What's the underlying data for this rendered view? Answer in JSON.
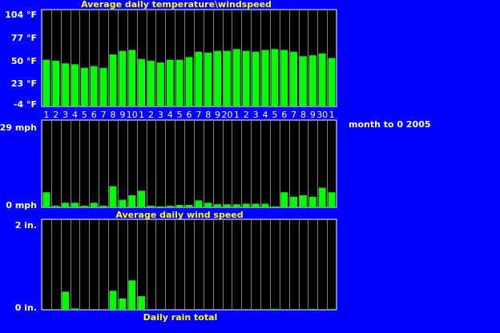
{
  "period_label": "month to 0 2005",
  "colors": {
    "background": "#0000ff",
    "plot_bg": "#000000",
    "bar": "#00ff00",
    "grid": "#808080",
    "title": "#ffff00",
    "label": "#ffffff"
  },
  "chart_data": [
    {
      "type": "bar",
      "title": "Average daily temperature\\windspeed",
      "categories": [
        "1",
        "2",
        "3",
        "4",
        "5",
        "6",
        "7",
        "8",
        "9",
        "10",
        "1",
        "2",
        "3",
        "4",
        "5",
        "6",
        "7",
        "8",
        "9",
        "20",
        "1",
        "2",
        "3",
        "4",
        "5",
        "6",
        "7",
        "8",
        "9",
        "30",
        "1"
      ],
      "values": [
        48,
        47,
        44,
        43,
        39,
        41,
        39,
        54,
        58,
        59,
        49,
        47,
        45,
        48,
        48,
        51,
        57,
        56,
        58,
        58,
        60,
        58,
        57,
        59,
        60,
        59,
        57,
        52,
        53,
        55,
        50
      ],
      "ylim": [
        -4,
        104
      ],
      "yticks": [
        "104 °F",
        "77 °F",
        "50 °F",
        "23 °F",
        "-4 °F"
      ],
      "grid": true
    },
    {
      "type": "bar",
      "title": "Average daily wind speed",
      "values": [
        5,
        0.5,
        1.5,
        1.5,
        0.5,
        1.5,
        0.5,
        7,
        2.5,
        4,
        5.5,
        0.5,
        0.3,
        0.5,
        0.8,
        0.8,
        2.3,
        1.5,
        1,
        1,
        1,
        1.2,
        1.2,
        1.2,
        0.3,
        5,
        3.5,
        4,
        3.5,
        6.5,
        5
      ],
      "ylim": [
        0,
        29
      ],
      "yticks": [
        "29 mph",
        "0 mph"
      ],
      "grid": true
    },
    {
      "type": "bar",
      "title": "Daily rain total",
      "values": [
        0,
        0,
        0.4,
        0.03,
        0,
        0,
        0,
        0.42,
        0.25,
        0.65,
        0.3,
        0,
        0,
        0,
        0,
        0,
        0,
        0,
        0,
        0,
        0,
        0,
        0,
        0,
        0.02,
        0,
        0,
        0,
        0.02,
        0,
        0.02
      ],
      "ylim": [
        0,
        2
      ],
      "yticks": [
        "2 in.",
        "0 in."
      ],
      "grid": true
    }
  ]
}
